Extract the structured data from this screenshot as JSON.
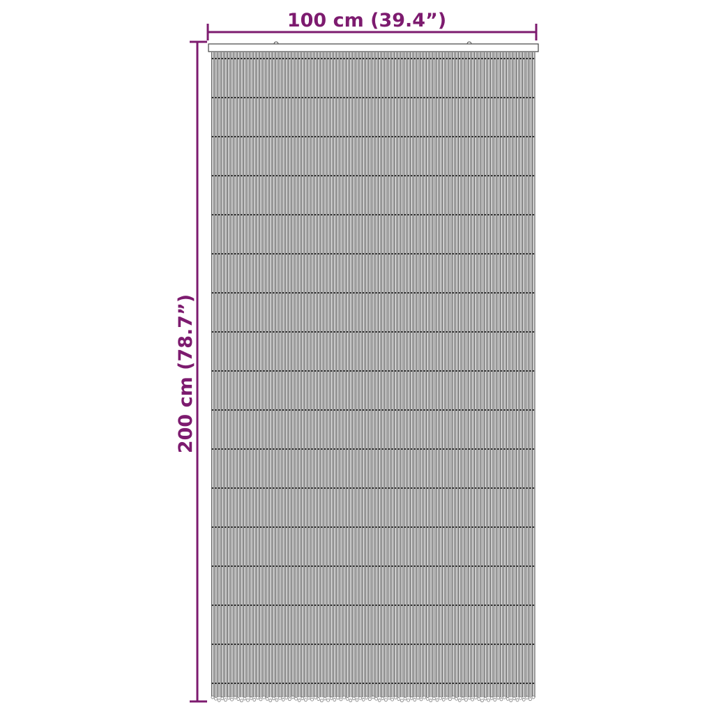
{
  "dimensions": {
    "width_label": "100 cm (39.4”)",
    "height_label": "200 cm (78.7”)"
  },
  "colors": {
    "dimension_line": "#7d1b6f",
    "strand": "#555555",
    "strand_fill": "#d6d6d6"
  },
  "product": "bead-door-curtain"
}
